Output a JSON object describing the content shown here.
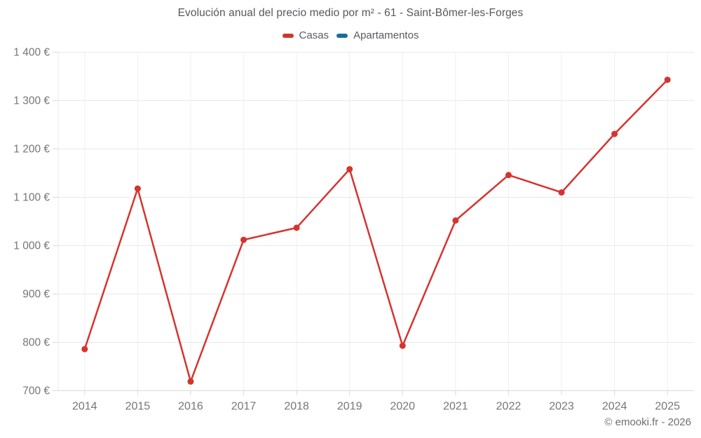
{
  "title": "Evolución anual del precio medio por m² - 61 - Saint-Bômer-les-Forges",
  "attribution": "© emooki.fr - 2026",
  "colors": {
    "casas": "#d5342f",
    "apartamentos": "#1a6d9e",
    "title_text": "#54585e",
    "legend_text": "#565a60",
    "axis_text": "#767676",
    "gridline": "#e9e9e9",
    "vertical_gridline": "#efefef",
    "axis_line": "#d9d9d9",
    "background": "#ffffff",
    "attribution_text": "#6e6e6e"
  },
  "chart_data": {
    "type": "line",
    "title": "Evolución anual del precio medio por m² - 61 - Saint-Bômer-les-Forges",
    "categories": [
      "2014",
      "2015",
      "2016",
      "2017",
      "2018",
      "2019",
      "2020",
      "2021",
      "2022",
      "2023",
      "2024",
      "2025"
    ],
    "series": [
      {
        "name": "Casas",
        "color": "#d5342f",
        "values": [
          786,
          1118,
          719,
          1012,
          1037,
          1158,
          793,
          1052,
          1146,
          1110,
          1231,
          1343
        ]
      },
      {
        "name": "Apartamentos",
        "color": "#1a6d9e",
        "values": []
      }
    ],
    "xlabel": "",
    "ylabel": "",
    "ylim": [
      700,
      1400
    ],
    "ytick_step": 100,
    "ytick_labels": [
      "700 €",
      "800 €",
      "900 €",
      "1 000 €",
      "1 100 €",
      "1 200 €",
      "1 300 €",
      "1 400 €"
    ],
    "yvalue_suffix": " €",
    "grid": true,
    "legend_position": "top",
    "line_width": 2.5,
    "marker_radius": 4.5
  }
}
